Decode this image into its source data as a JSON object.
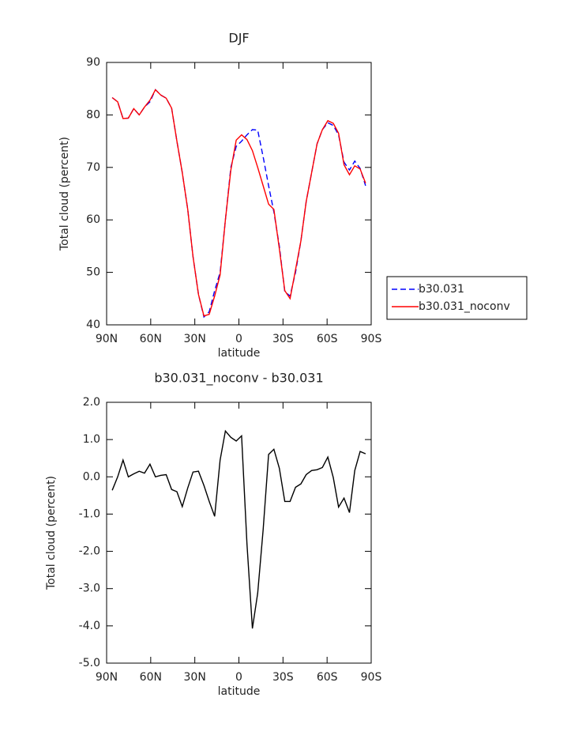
{
  "chart_data": [
    {
      "type": "line",
      "title": "DJF",
      "xlabel": "latitude",
      "ylabel": "Total cloud (percent)",
      "x": [
        86.2,
        82.5,
        78.8,
        75.2,
        71.5,
        67.8,
        64.2,
        60.5,
        56.8,
        53.2,
        49.5,
        45.8,
        42.2,
        38.5,
        34.8,
        31.2,
        27.5,
        23.8,
        20.2,
        16.5,
        12.8,
        9.2,
        5.5,
        1.8,
        -1.8,
        -5.5,
        -9.2,
        -12.8,
        -16.5,
        -20.2,
        -23.8,
        -27.5,
        -31.2,
        -34.8,
        -38.5,
        -42.2,
        -45.8,
        -49.5,
        -53.2,
        -56.8,
        -60.5,
        -64.2,
        -67.8,
        -71.5,
        -75.2,
        -78.8,
        -82.5,
        -86.2
      ],
      "series": [
        {
          "name": "b30.031",
          "color": "#0000ff",
          "dash": true,
          "values": [
            83.3,
            82.5,
            79.3,
            79.4,
            81.2,
            80,
            81.5,
            82.5,
            84.8,
            83.8,
            83.2,
            81.3,
            75,
            69,
            62,
            53,
            45.8,
            41.5,
            42.5,
            46.5,
            50,
            60,
            70,
            74,
            75,
            76.2,
            77.2,
            77.1,
            72,
            66.5,
            61.5,
            55,
            46.3,
            45.5,
            50,
            56,
            63.5,
            69,
            74.5,
            77.2,
            78.5,
            78,
            76.2,
            71,
            69.5,
            71.2,
            69.8,
            66.5
          ]
        },
        {
          "name": "b30.031_noconv",
          "color": "#ff0000",
          "dash": false,
          "values": [
            83.3,
            82.5,
            79.3,
            79.4,
            81.2,
            80,
            81.5,
            82.8,
            84.8,
            83.8,
            83.2,
            81.3,
            75,
            69,
            62,
            53,
            45.8,
            41.7,
            42,
            45.5,
            49.5,
            60,
            69.5,
            75.2,
            76.2,
            75.3,
            73.2,
            70,
            66.5,
            63,
            62,
            54.5,
            46.5,
            45,
            50.5,
            56,
            63.5,
            69,
            74.5,
            77.2,
            78.9,
            78.4,
            76.5,
            70.5,
            68.6,
            70.3,
            69.7,
            67
          ]
        }
      ],
      "xlim": [
        90,
        -90
      ],
      "xticks": [
        {
          "value": 90,
          "label": "90N"
        },
        {
          "value": 60,
          "label": "60N"
        },
        {
          "value": 30,
          "label": "30N"
        },
        0,
        {
          "value": -30,
          "label": "30S"
        },
        {
          "value": -60,
          "label": "60S"
        },
        {
          "value": -90,
          "label": "90S"
        }
      ],
      "ylim": [
        40,
        90
      ],
      "yticks": [
        40,
        50,
        60,
        70,
        80,
        90
      ],
      "legend": "right"
    },
    {
      "type": "line",
      "title": "b30.031_noconv - b30.031",
      "xlabel": "latitude",
      "ylabel": "Total cloud (percent)",
      "x": [
        86.2,
        82.5,
        78.8,
        75.2,
        71.5,
        67.8,
        64.2,
        60.5,
        56.8,
        53.2,
        49.5,
        45.8,
        42.2,
        38.5,
        34.8,
        31.2,
        27.5,
        23.8,
        20.2,
        16.5,
        12.8,
        9.2,
        5.5,
        1.8,
        -1.8,
        -5.5,
        -9.2,
        -12.8,
        -16.5,
        -20.2,
        -23.8,
        -27.5,
        -31.2,
        -34.8,
        -38.5,
        -42.2,
        -45.8,
        -49.5,
        -53.2,
        -56.8,
        -60.5,
        -64.2,
        -67.8,
        -71.5,
        -75.2,
        -78.8,
        -82.5,
        -86.2
      ],
      "series": [
        {
          "color": "#000000",
          "dash": false,
          "values": [
            -0.36,
            0,
            0.45,
            0,
            0.08,
            0.15,
            0.1,
            0.34,
            0,
            0.04,
            0.06,
            -0.34,
            -0.4,
            -0.8,
            -0.3,
            0.13,
            0.15,
            -0.23,
            -0.66,
            -1.06,
            0.45,
            1.23,
            1.06,
            0.96,
            1.1,
            -1.8,
            -4.07,
            -3.12,
            -1.42,
            0.6,
            0.74,
            0.23,
            -0.66,
            -0.66,
            -0.28,
            -0.19,
            0.06,
            0.17,
            0.19,
            0.25,
            0.53,
            -0.02,
            -0.81,
            -0.57,
            -0.96,
            0.17,
            0.68,
            0.62
          ]
        }
      ],
      "xlim": [
        90,
        -90
      ],
      "xticks": [
        {
          "value": 90,
          "label": "90N"
        },
        {
          "value": 60,
          "label": "60N"
        },
        {
          "value": 30,
          "label": "30N"
        },
        0,
        {
          "value": -30,
          "label": "30S"
        },
        {
          "value": -60,
          "label": "60S"
        },
        {
          "value": -90,
          "label": "90S"
        }
      ],
      "ylim": [
        -5,
        2
      ],
      "yticks": [
        {
          "value": -5,
          "label": "-5.0"
        },
        {
          "value": -4,
          "label": "-4.0"
        },
        {
          "value": -3,
          "label": "-3.0"
        },
        {
          "value": -2,
          "label": "-2.0"
        },
        {
          "value": -1,
          "label": "-1.0"
        },
        {
          "value": 0,
          "label": "0.0"
        },
        {
          "value": 1,
          "label": "1.0"
        },
        {
          "value": 2,
          "label": "2.0"
        }
      ]
    }
  ]
}
